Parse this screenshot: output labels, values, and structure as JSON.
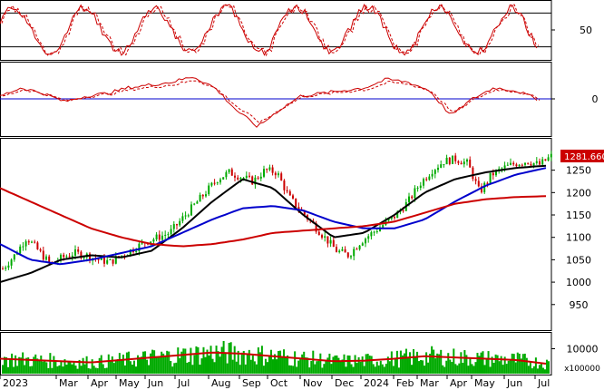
{
  "chart_data": {
    "type": "candlestick",
    "panels": {
      "stochastic": {
        "ticks": [
          50
        ],
        "ref_lines": [
          80,
          20
        ],
        "ylim": [
          0,
          100
        ],
        "color_k": "#000000",
        "color_d": "#cc0000"
      },
      "macd": {
        "ticks": [
          0
        ],
        "ylim": [
          -60,
          60
        ],
        "zero_color": "#0000cc",
        "color_macd": "#cc0000",
        "color_signal": "#cc0000"
      },
      "price": {
        "ticks": [
          950,
          1000,
          1050,
          1100,
          1150,
          1200,
          1250
        ],
        "ylim": [
          905,
          1310
        ],
        "last_price": 1281.66,
        "last_price_label": "1281.660",
        "up_color": "#00aa00",
        "down_color": "#cc0000",
        "moving_averages": [
          {
            "color": "#000000",
            "values": [
              1000,
              1020,
              1050,
              1060,
              1055,
              1070,
              1120,
              1180,
              1230,
              1210,
              1150,
              1100,
              1110,
              1150,
              1200,
              1230,
              1245,
              1255,
              1260
            ]
          },
          {
            "color": "#0000cc",
            "values": [
              1085,
              1050,
              1040,
              1050,
              1065,
              1080,
              1110,
              1140,
              1165,
              1170,
              1160,
              1135,
              1120,
              1120,
              1140,
              1180,
              1215,
              1240,
              1255
            ]
          },
          {
            "color": "#cc0000",
            "values": [
              1210,
              1180,
              1150,
              1120,
              1100,
              1085,
              1080,
              1085,
              1095,
              1110,
              1115,
              1120,
              1125,
              1135,
              1155,
              1175,
              1185,
              1190,
              1192
            ]
          }
        ]
      },
      "volume": {
        "ticks": [
          10000
        ],
        "multiplier_label": "x100000",
        "ylim": [
          0,
          16000
        ],
        "bar_color": "#00aa00",
        "ma_color": "#cc0000",
        "ma_values": [
          6000,
          5500,
          5000,
          4500,
          5500,
          6500,
          7500,
          8500,
          8000,
          7000,
          6000,
          5000,
          5200,
          6000,
          7000,
          6500,
          6000,
          5500,
          4000
        ]
      }
    },
    "x_labels": [
      "2023",
      "Mar",
      "Apr",
      "May",
      "Jun",
      "Jul",
      "Aug",
      "Sep",
      "Oct",
      "Nov",
      "Dec",
      "2024",
      "Feb",
      "Mar",
      "Apr",
      "May",
      "Jun",
      "Jul"
    ],
    "close": [
      1030,
      1060,
      1100,
      1070,
      1040,
      1055,
      1065,
      1060,
      1050,
      1045,
      1060,
      1075,
      1090,
      1100,
      1110,
      1140,
      1170,
      1200,
      1230,
      1245,
      1235,
      1225,
      1250,
      1245,
      1190,
      1160,
      1130,
      1100,
      1070,
      1060,
      1090,
      1110,
      1130,
      1150,
      1180,
      1220,
      1250,
      1270,
      1275,
      1265,
      1200,
      1240,
      1255,
      1265,
      1270,
      1262,
      1281
    ]
  }
}
